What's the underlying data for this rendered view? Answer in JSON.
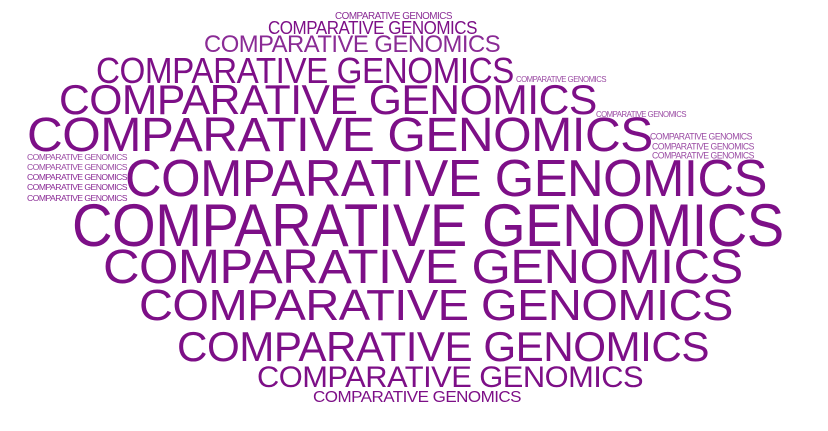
{
  "word_cloud": {
    "colors": {
      "primary": "#7d0f87",
      "secondary": "#9a4aa3",
      "tertiary": "#8a2b95"
    },
    "words": [
      {
        "text": "COMPARATIVE GENOMICS",
        "tone": "tertiary"
      },
      {
        "text": "COMPARATIVE GENOMICS",
        "tone": "secondary"
      },
      {
        "text": "COMPARATIVE GENOMICS",
        "tone": "secondary"
      },
      {
        "text": "COMPARATIVE GENOMICS",
        "tone": "secondary"
      },
      {
        "text": "COMPARATIVE GENOMICS",
        "tone": "secondary"
      },
      {
        "text": "COMPARATIVE GENOMICS",
        "tone": "secondary"
      },
      {
        "text": "COMPARATIVE GENOMICS",
        "tone": "secondary"
      },
      {
        "text": "COMPARATIVE GENOMICS",
        "tone": "secondary"
      },
      {
        "text": "COMPARATIVE GENOMICS",
        "tone": "tertiary"
      },
      {
        "text": "COMPARATIVE GENOMICS",
        "tone": "tertiary"
      },
      {
        "text": "COMPARATIVE GENOMICS",
        "tone": "tertiary"
      },
      {
        "text": "COMPARATIVE GENOMICS",
        "tone": "primary"
      },
      {
        "text": "COMPARATIVE GENOMICS",
        "tone": "tertiary"
      },
      {
        "text": "COMPARATIVE GENOMICS",
        "tone": "primary"
      },
      {
        "text": "COMPARATIVE GENOMICS",
        "tone": "primary"
      },
      {
        "text": "COMPARATIVE GENOMICS",
        "tone": "primary"
      },
      {
        "text": "COMPARATIVE GENOMICS",
        "tone": "primary"
      },
      {
        "text": "COMPARATIVE GENOMICS",
        "tone": "primary"
      },
      {
        "text": "COMPARATIVE GENOMICS",
        "tone": "primary"
      },
      {
        "text": "COMPARATIVE GENOMICS",
        "tone": "primary"
      },
      {
        "text": "COMPARATIVE GENOMICS",
        "tone": "primary"
      },
      {
        "text": "COMPARATIVE GENOMICS",
        "tone": "primary"
      },
      {
        "text": "COMPARATIVE GENOMICS",
        "tone": "primary"
      },
      {
        "text": "COMPARATIVE GENOMICS",
        "tone": "tertiary"
      }
    ]
  }
}
